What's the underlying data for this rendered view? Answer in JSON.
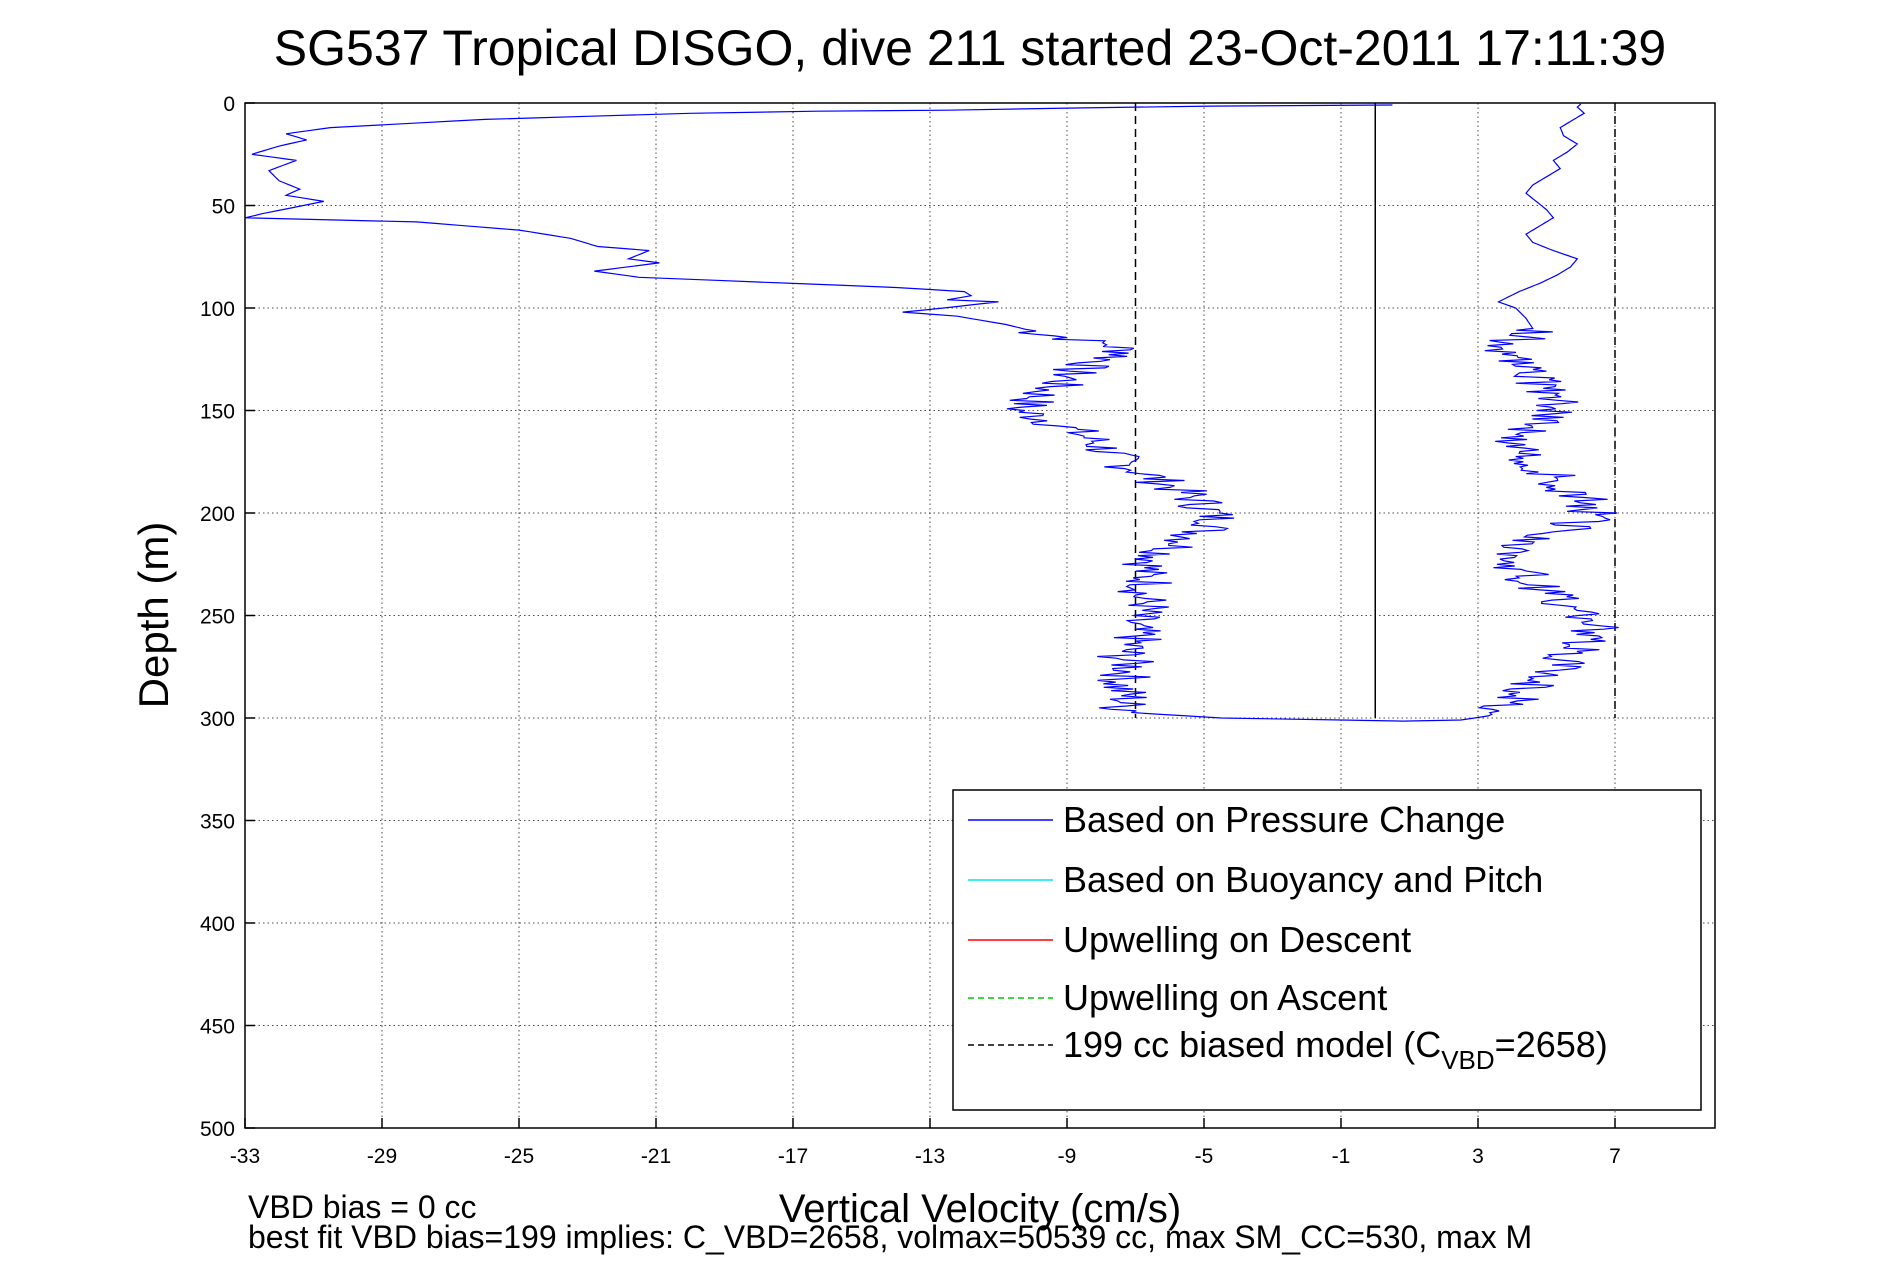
{
  "chart_data": {
    "type": "line",
    "title": "SG537 Tropical DISGO, dive 211 started 23-Oct-2011 17:11:39",
    "xlabel": "Vertical Velocity (cm/s)",
    "ylabel": "Depth (m)",
    "xlim": [
      -33,
      10
    ],
    "ylim": [
      0,
      500
    ],
    "y_reversed": true,
    "grid": true,
    "x_ticks": [
      "-33",
      "-29",
      "-25",
      "-21",
      "-17",
      "-13",
      "-9",
      "-5",
      "-1",
      "3",
      "7"
    ],
    "y_ticks": [
      "0",
      "50",
      "100",
      "150",
      "200",
      "250",
      "300",
      "350",
      "400",
      "450",
      "500"
    ],
    "legend_position": "bottom-right",
    "series": [
      {
        "name": "Based on Pressure Change",
        "color": "#0000ff",
        "style": "solid",
        "points": [
          [
            0.5,
            1
          ],
          [
            -4.8,
            1.5
          ],
          [
            -9,
            2.5
          ],
          [
            -12.5,
            3.5
          ],
          [
            -16.3,
            4
          ],
          [
            -20,
            5
          ],
          [
            -26,
            8
          ],
          [
            -30.5,
            12
          ],
          [
            -31.8,
            15
          ],
          [
            -31.2,
            18
          ],
          [
            -32,
            21
          ],
          [
            -32.8,
            25
          ],
          [
            -31.5,
            28
          ],
          [
            -32.3,
            33
          ],
          [
            -32,
            38
          ],
          [
            -31.4,
            42
          ],
          [
            -31.8,
            45
          ],
          [
            -30.7,
            48
          ],
          [
            -31.6,
            51
          ],
          [
            -32.5,
            54
          ],
          [
            -33,
            56
          ],
          [
            -28,
            58
          ],
          [
            -25,
            62
          ],
          [
            -23.5,
            66
          ],
          [
            -22.7,
            70
          ],
          [
            -21.2,
            72
          ],
          [
            -21.8,
            76
          ],
          [
            -20.9,
            78
          ],
          [
            -22.8,
            82
          ],
          [
            -21.5,
            85
          ],
          [
            -17,
            88
          ],
          [
            -14,
            90
          ],
          [
            -12,
            92
          ],
          [
            -11.8,
            94
          ],
          [
            -12.5,
            96
          ],
          [
            -11,
            97
          ],
          [
            -12.6,
            100
          ],
          [
            -13.8,
            102
          ],
          [
            -12.2,
            104
          ],
          [
            -11.5,
            106
          ],
          [
            -10.8,
            108
          ],
          [
            -9.8,
            112
          ],
          [
            -8.5,
            116
          ],
          [
            -7.7,
            118
          ],
          [
            -7.2,
            122
          ],
          [
            -8,
            126
          ],
          [
            -8.8,
            130
          ],
          [
            -9,
            135
          ],
          [
            -9.6,
            140
          ],
          [
            -10,
            145
          ],
          [
            -10.4,
            150
          ],
          [
            -9.5,
            155
          ],
          [
            -8.8,
            160
          ],
          [
            -8.2,
            165
          ],
          [
            -7.8,
            170
          ],
          [
            -7.5,
            175
          ],
          [
            -6.8,
            180
          ],
          [
            -6.2,
            185
          ],
          [
            -5.6,
            190
          ],
          [
            -5.1,
            195
          ],
          [
            -4.8,
            200
          ],
          [
            -4.5,
            205
          ],
          [
            -5.2,
            210
          ],
          [
            -5.6,
            215
          ],
          [
            -6.2,
            220
          ],
          [
            -6.6,
            225
          ],
          [
            -6.8,
            230
          ],
          [
            -6.5,
            235
          ],
          [
            -6.9,
            240
          ],
          [
            -6.6,
            245
          ],
          [
            -7,
            250
          ],
          [
            -7.2,
            255
          ],
          [
            -6.9,
            260
          ],
          [
            -7.2,
            265
          ],
          [
            -7.4,
            270
          ],
          [
            -7.1,
            275
          ],
          [
            -7.3,
            280
          ],
          [
            -7.5,
            285
          ],
          [
            -7.2,
            290
          ],
          [
            -7.4,
            295
          ],
          [
            -6.5,
            298
          ],
          [
            -4.5,
            300
          ],
          [
            -1,
            301
          ],
          [
            0.8,
            301.5
          ],
          [
            2.5,
            301
          ],
          [
            3.3,
            299
          ],
          [
            3.8,
            295
          ],
          [
            4.2,
            290
          ],
          [
            4.6,
            285
          ],
          [
            4.9,
            280
          ],
          [
            5.3,
            275
          ],
          [
            5.6,
            270
          ],
          [
            5.9,
            265
          ],
          [
            6.2,
            260
          ],
          [
            6.4,
            255
          ],
          [
            6.1,
            250
          ],
          [
            5.6,
            245
          ],
          [
            5.1,
            240
          ],
          [
            4.7,
            235
          ],
          [
            4.3,
            230
          ],
          [
            4.1,
            225
          ],
          [
            4,
            220
          ],
          [
            4.6,
            215
          ],
          [
            5.2,
            210
          ],
          [
            5.9,
            205
          ],
          [
            6.4,
            200
          ],
          [
            6.2,
            195
          ],
          [
            5.8,
            190
          ],
          [
            5.4,
            185
          ],
          [
            5,
            180
          ],
          [
            4.6,
            175
          ],
          [
            4.2,
            170
          ],
          [
            3.9,
            165
          ],
          [
            4.4,
            160
          ],
          [
            5,
            155
          ],
          [
            5.4,
            150
          ],
          [
            5.6,
            145
          ],
          [
            5.1,
            140
          ],
          [
            4.6,
            135
          ],
          [
            4.3,
            130
          ],
          [
            4.1,
            125
          ],
          [
            3.8,
            120
          ],
          [
            4.2,
            115
          ],
          [
            4.6,
            110
          ],
          [
            4.4,
            105
          ],
          [
            4.1,
            100
          ],
          [
            3.6,
            97
          ],
          [
            4.2,
            92
          ],
          [
            4.8,
            88
          ],
          [
            5.3,
            84
          ],
          [
            5.7,
            80
          ],
          [
            5.9,
            76
          ],
          [
            5.2,
            72
          ],
          [
            4.6,
            68
          ],
          [
            4.4,
            64
          ],
          [
            4.8,
            60
          ],
          [
            5.2,
            56
          ],
          [
            5,
            52
          ],
          [
            4.7,
            48
          ],
          [
            4.4,
            44
          ],
          [
            4.6,
            40
          ],
          [
            5,
            36
          ],
          [
            5.4,
            32
          ],
          [
            5.2,
            28
          ],
          [
            5.6,
            24
          ],
          [
            5.9,
            20
          ],
          [
            5.5,
            16
          ],
          [
            5.4,
            12
          ],
          [
            5.8,
            8
          ],
          [
            6.1,
            5
          ],
          [
            5.9,
            2
          ],
          [
            6,
            0.5
          ]
        ]
      },
      {
        "name": "Based on Buoyancy and Pitch",
        "color": "#00e5ee",
        "style": "solid",
        "points": []
      },
      {
        "name": "Upwelling on Descent",
        "color": "#ff0000",
        "style": "solid",
        "points": []
      },
      {
        "name": "Upwelling on Ascent",
        "color": "#00cc00",
        "style": "dashed",
        "points": []
      },
      {
        "name": "199 cc biased model (C",
        "name_sub": "VBD",
        "name_tail": "=2658)",
        "color": "#000000",
        "style": "dashed",
        "points": []
      }
    ],
    "reference_lines": [
      {
        "x": -7,
        "style": "dashed",
        "color": "#000000",
        "y_range": [
          0,
          300
        ]
      },
      {
        "x": 7,
        "style": "dashed",
        "color": "#000000",
        "y_range": [
          0,
          300
        ]
      },
      {
        "x": 0,
        "style": "solid",
        "color": "#000000",
        "y_range": [
          0,
          300
        ]
      }
    ],
    "footnotes": [
      "VBD bias = 0 cc",
      "best fit VBD bias=199 implies: C_VBD=2658, volmax=50539 cc, max SM_CC=530, max M"
    ]
  }
}
